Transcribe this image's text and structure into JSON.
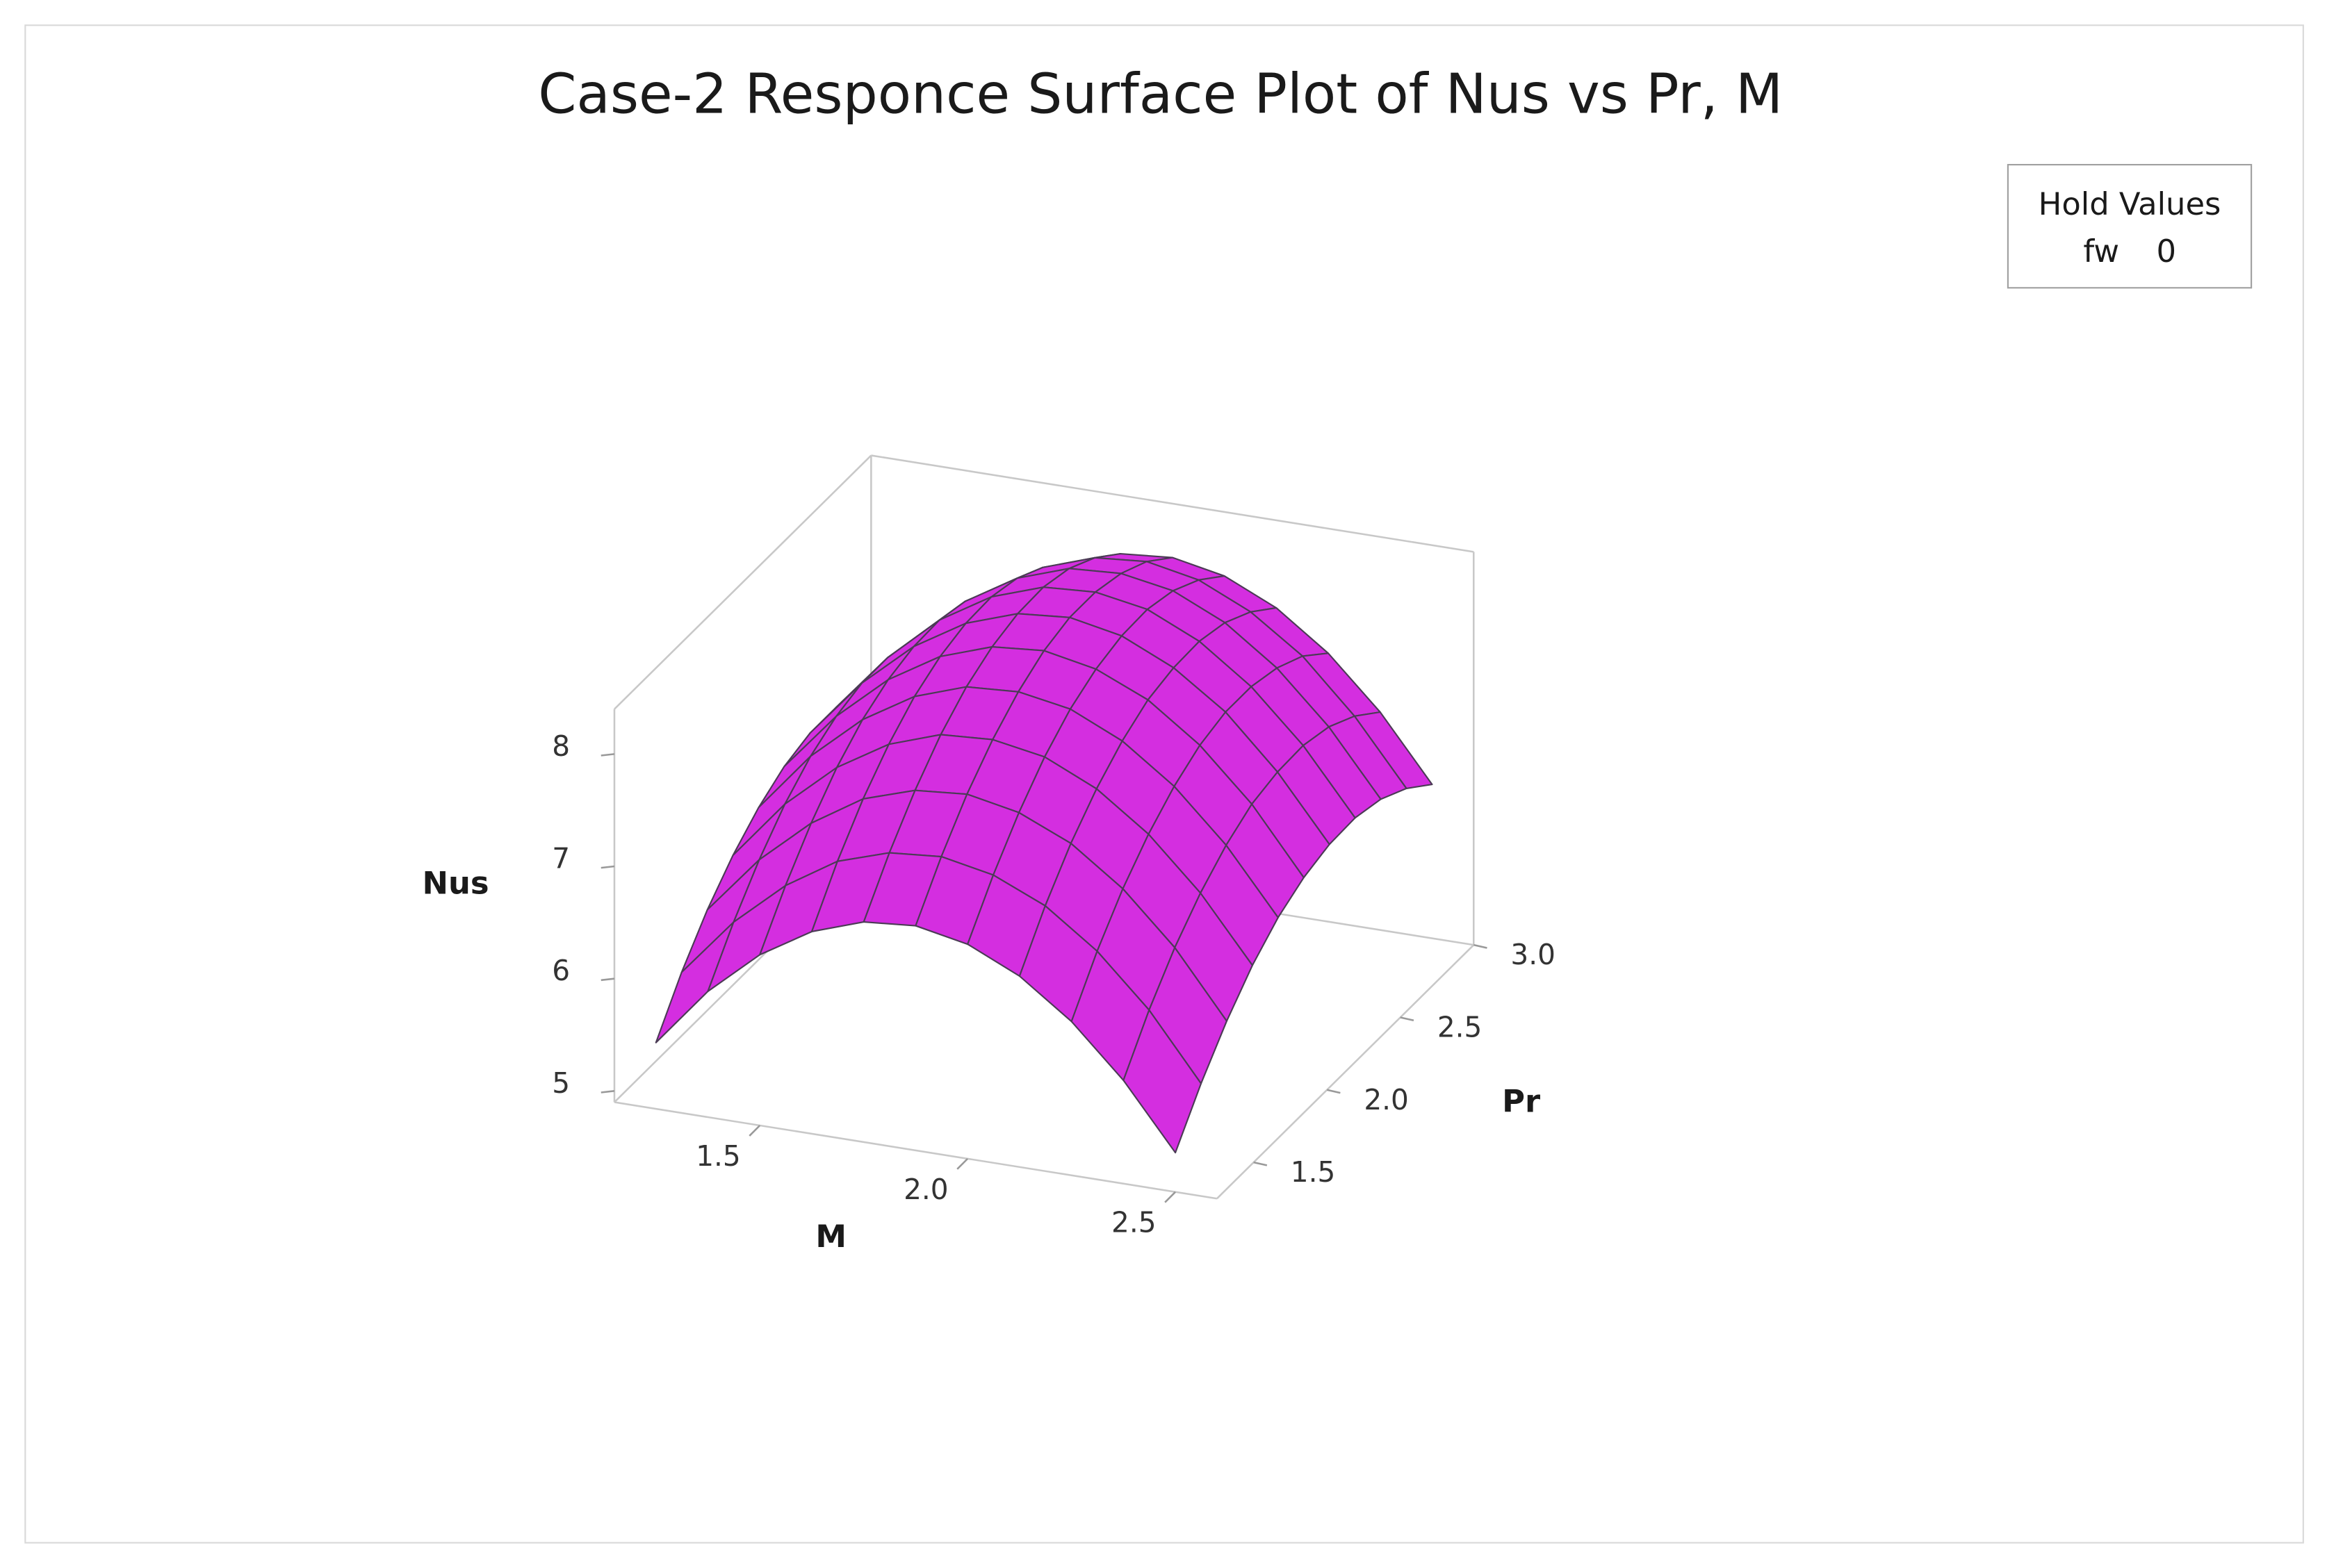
{
  "chart_data": {
    "type": "surface",
    "title": "Case-2 Responce Surface Plot of Nus vs Pr, M",
    "x_label": "M",
    "y_label": "Pr",
    "z_label": "Nus",
    "color": "#d42ee0",
    "hold_values": {
      "title": "Hold Values",
      "items": [
        {
          "name": "fw",
          "value": 0
        }
      ]
    },
    "x": [
      1.25,
      1.375,
      1.5,
      1.625,
      1.75,
      1.875,
      2.0,
      2.125,
      2.25,
      2.375,
      2.5
    ],
    "y": [
      1.25,
      1.425,
      1.6,
      1.775,
      1.95,
      2.125,
      2.3,
      2.475,
      2.65,
      2.825,
      3.0
    ],
    "z": [
      [
        5.49,
        6.02,
        6.42,
        6.7,
        6.86,
        6.9,
        6.81,
        6.6,
        6.27,
        5.82,
        5.25
      ],
      [
        5.89,
        6.41,
        6.81,
        7.1,
        7.25,
        7.29,
        7.2,
        7.0,
        6.67,
        6.22,
        5.64
      ],
      [
        6.22,
        6.74,
        7.14,
        7.43,
        7.58,
        7.62,
        7.53,
        7.33,
        7.0,
        6.55,
        5.97
      ],
      [
        6.48,
        7.01,
        7.41,
        7.69,
        7.85,
        7.88,
        7.8,
        7.59,
        7.26,
        6.81,
        6.24
      ],
      [
        6.68,
        7.21,
        7.61,
        7.89,
        8.05,
        8.08,
        8.0,
        7.79,
        7.46,
        7.01,
        6.44
      ],
      [
        6.82,
        7.34,
        7.74,
        8.02,
        8.18,
        8.22,
        8.13,
        7.93,
        7.6,
        7.15,
        6.57
      ],
      [
        6.89,
        7.41,
        7.81,
        8.09,
        8.25,
        8.29,
        8.2,
        7.99,
        7.67,
        7.21,
        6.64
      ],
      [
        6.89,
        7.41,
        7.82,
        8.1,
        8.26,
        8.29,
        8.21,
        8.0,
        7.67,
        7.22,
        6.65
      ],
      [
        6.83,
        7.35,
        7.76,
        8.04,
        8.2,
        8.23,
        8.15,
        7.94,
        7.61,
        7.16,
        6.59
      ],
      [
        6.71,
        7.23,
        7.63,
        7.91,
        8.07,
        8.11,
        8.02,
        7.81,
        7.49,
        7.03,
        6.46
      ],
      [
        6.51,
        7.04,
        7.44,
        7.72,
        7.88,
        7.92,
        7.83,
        7.62,
        7.29,
        6.84,
        6.27
      ]
    ],
    "xlim": [
      1.15,
      2.6
    ],
    "ylim": [
      1.25,
      3.0
    ],
    "zlim": [
      4.9,
      8.4
    ],
    "xticks": [
      1.5,
      {
        "value": 2,
        "label": "2.0"
      },
      2.5
    ],
    "yticks": [
      1.5,
      {
        "value": 2,
        "label": "2.0"
      },
      2.5,
      {
        "value": 3,
        "label": "3.0"
      }
    ],
    "zticks": [
      5,
      6,
      7,
      8
    ]
  }
}
